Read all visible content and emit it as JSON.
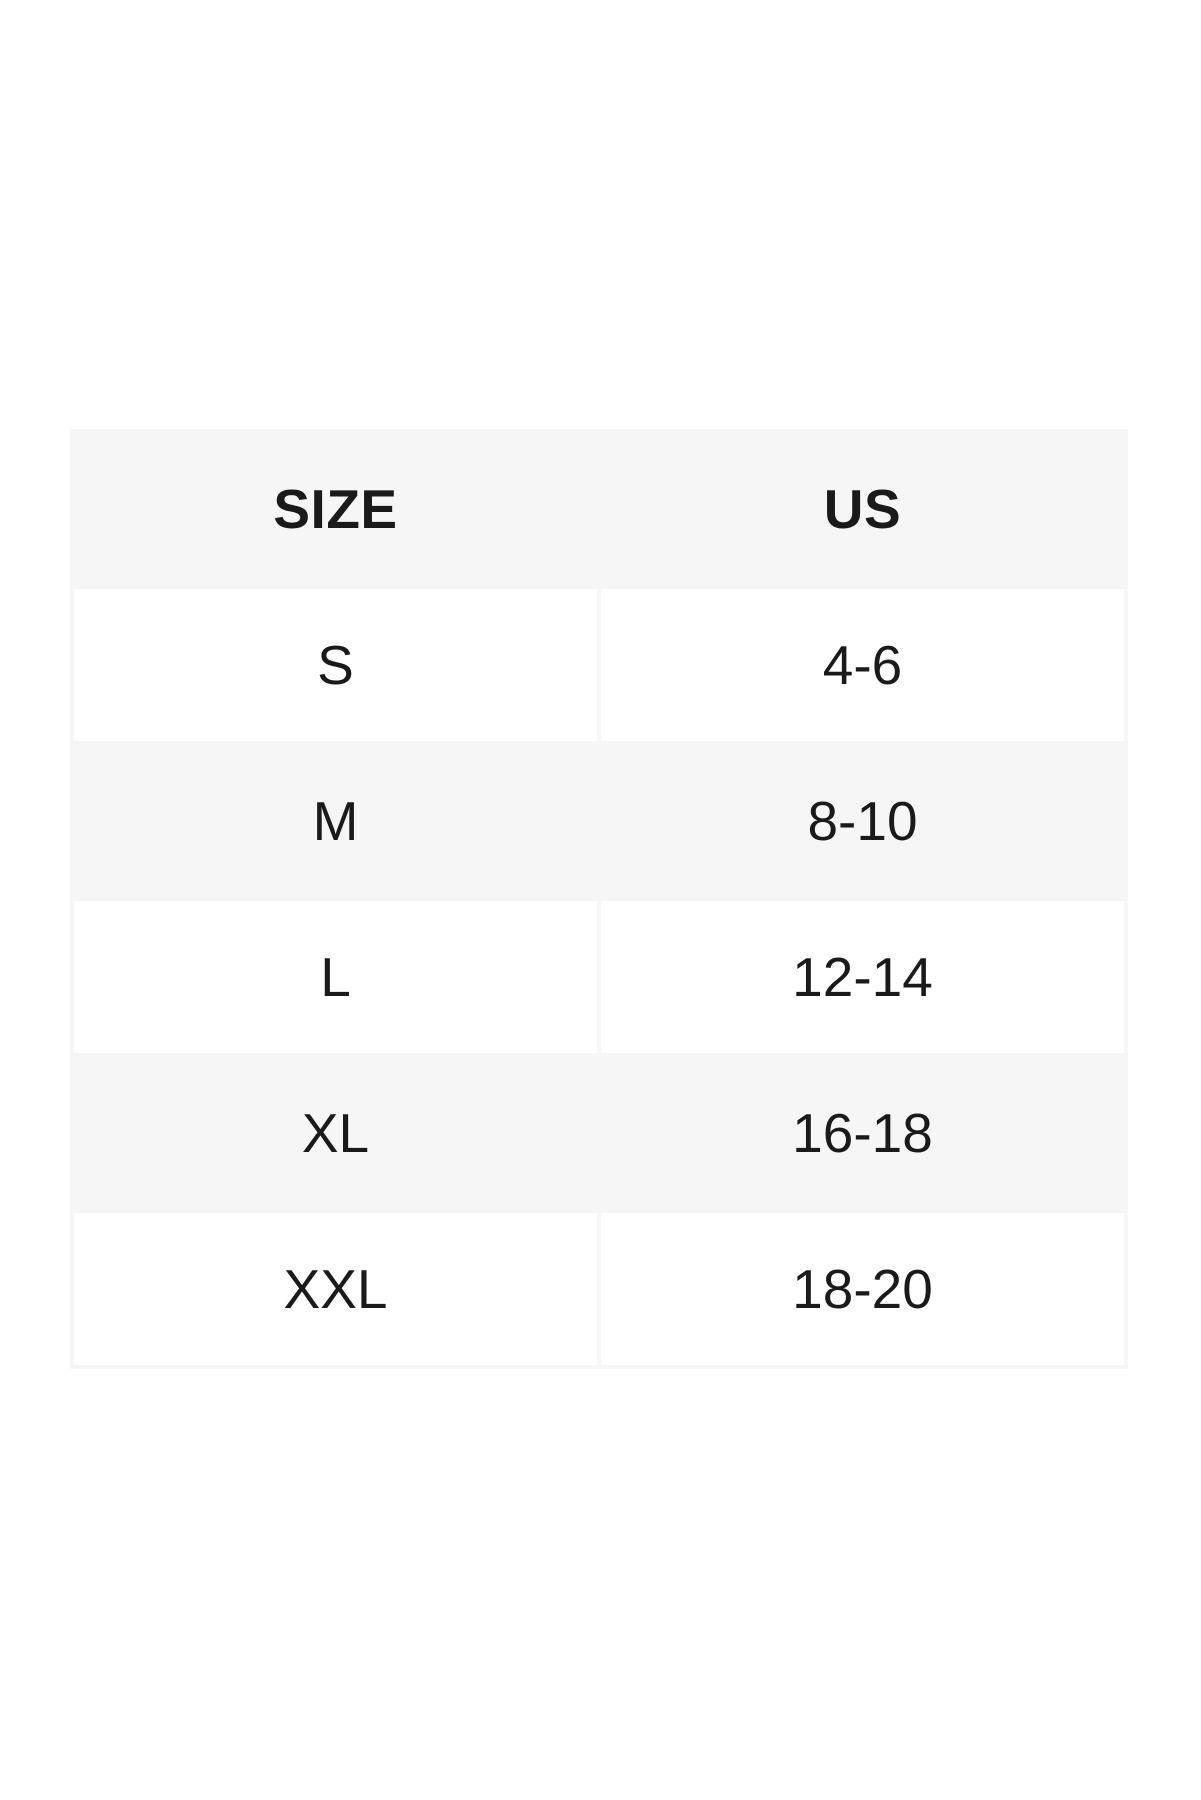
{
  "page": {
    "background_color": "#ffffff"
  },
  "size_chart": {
    "colors": {
      "stripe": "#f6f6f6",
      "cell": "#ffffff",
      "text": "#1a1a1a"
    },
    "columns": [
      "SIZE",
      "US"
    ],
    "rows": [
      {
        "size": "S",
        "us": "4-6"
      },
      {
        "size": "M",
        "us": "8-10"
      },
      {
        "size": "L",
        "us": "12-14"
      },
      {
        "size": "XL",
        "us": "16-18"
      },
      {
        "size": "XXL",
        "us": "18-20"
      }
    ]
  }
}
